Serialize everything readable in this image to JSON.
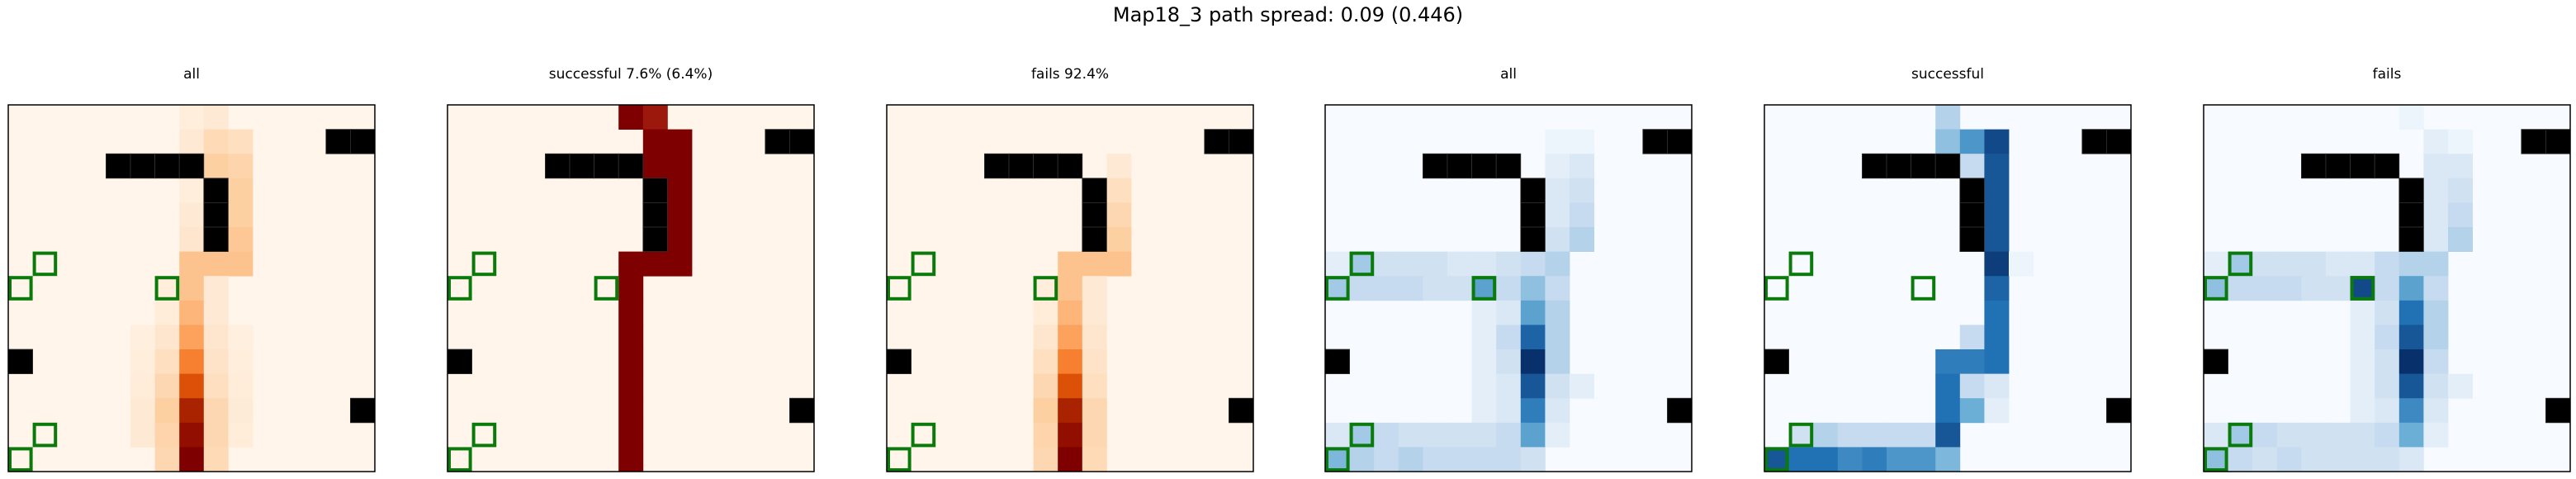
{
  "figure_title": "Map18_3 path spread: 0.09 (0.446)",
  "chart_data": {
    "type": "heatmap",
    "grid_size": 15,
    "obstacles": [
      [
        1,
        13
      ],
      [
        1,
        14
      ],
      [
        2,
        4
      ],
      [
        2,
        5
      ],
      [
        2,
        6
      ],
      [
        2,
        7
      ],
      [
        3,
        8
      ],
      [
        4,
        8
      ],
      [
        5,
        8
      ],
      [
        10,
        0
      ],
      [
        12,
        14
      ]
    ],
    "targets": [
      [
        6,
        1
      ],
      [
        7,
        0
      ],
      [
        7,
        6
      ],
      [
        13,
        1
      ],
      [
        14,
        0
      ]
    ],
    "panels": [
      {
        "title": "all",
        "colormap": "Oranges",
        "values": {
          "0": {
            "7": 0.05,
            "8": 0.08
          },
          "1": {
            "7": 0.08,
            "8": 0.18,
            "9": 0.15
          },
          "2": {
            "8": 0.25,
            "9": 0.22
          },
          "3": {
            "7": 0.05,
            "9": 0.25
          },
          "4": {
            "7": 0.08,
            "9": 0.25
          },
          "5": {
            "7": 0.1,
            "9": 0.28
          },
          "6": {
            "7": 0.3,
            "8": 0.3,
            "9": 0.3
          },
          "7": {
            "6": 0.05,
            "7": 0.3,
            "8": 0.08
          },
          "8": {
            "6": 0.06,
            "7": 0.35,
            "8": 0.08
          },
          "9": {
            "5": 0.04,
            "6": 0.1,
            "7": 0.42,
            "8": 0.1,
            "9": 0.04
          },
          "10": {
            "5": 0.05,
            "6": 0.15,
            "7": 0.55,
            "8": 0.12,
            "9": 0.05
          },
          "11": {
            "5": 0.06,
            "6": 0.2,
            "7": 0.72,
            "8": 0.15,
            "9": 0.06
          },
          "12": {
            "5": 0.08,
            "6": 0.25,
            "7": 0.88,
            "8": 0.2,
            "9": 0.07
          },
          "13": {
            "5": 0.08,
            "6": 0.22,
            "7": 0.95,
            "8": 0.2,
            "9": 0.06
          },
          "14": {
            "6": 0.2,
            "7": 1.0,
            "8": 0.18
          }
        }
      },
      {
        "title": "successful 7.6% (6.4%)",
        "colormap": "Reds_dark",
        "values": {
          "0": {
            "7": 1.0,
            "8": 0.8
          },
          "1": {
            "8": 1.0,
            "9": 1.0
          },
          "2": {
            "8": 1.0,
            "9": 1.0
          },
          "3": {
            "9": 1.0
          },
          "4": {
            "9": 1.0
          },
          "5": {
            "9": 1.0
          },
          "6": {
            "7": 1.0,
            "8": 1.0,
            "9": 1.0
          },
          "7": {
            "7": 1.0
          },
          "8": {
            "7": 1.0
          },
          "9": {
            "7": 1.0
          },
          "10": {
            "7": 1.0
          },
          "11": {
            "7": 1.0
          },
          "12": {
            "7": 1.0
          },
          "13": {
            "7": 1.0
          },
          "14": {
            "7": 1.0
          }
        }
      },
      {
        "title": "fails 92.4%",
        "colormap": "Oranges",
        "values": {
          "2": {
            "9": 0.08
          },
          "3": {
            "9": 0.15
          },
          "4": {
            "9": 0.2
          },
          "5": {
            "9": 0.25
          },
          "6": {
            "7": 0.3,
            "8": 0.3,
            "9": 0.3
          },
          "7": {
            "6": 0.05,
            "7": 0.3,
            "8": 0.08
          },
          "8": {
            "6": 0.06,
            "7": 0.35,
            "8": 0.08
          },
          "9": {
            "6": 0.1,
            "7": 0.42,
            "8": 0.1
          },
          "10": {
            "6": 0.15,
            "7": 0.55,
            "8": 0.12
          },
          "11": {
            "6": 0.2,
            "7": 0.72,
            "8": 0.15
          },
          "12": {
            "6": 0.25,
            "7": 0.88,
            "8": 0.2
          },
          "13": {
            "6": 0.22,
            "7": 0.95,
            "8": 0.2
          },
          "14": {
            "6": 0.2,
            "7": 1.0,
            "8": 0.18
          }
        }
      },
      {
        "title": "all",
        "colormap": "Blues",
        "values": {
          "1": {
            "9": 0.05,
            "10": 0.05
          },
          "2": {
            "9": 0.1,
            "10": 0.15
          },
          "3": {
            "9": 0.15,
            "10": 0.2
          },
          "4": {
            "9": 0.15,
            "10": 0.25
          },
          "5": {
            "9": 0.2,
            "10": 0.3
          },
          "6": {
            "0": 0.1,
            "1": 0.35,
            "2": 0.2,
            "3": 0.2,
            "4": 0.2,
            "5": 0.15,
            "6": 0.15,
            "7": 0.2,
            "8": 0.25,
            "9": 0.3
          },
          "7": {
            "0": 0.35,
            "1": 0.25,
            "2": 0.25,
            "3": 0.25,
            "4": 0.2,
            "5": 0.2,
            "6": 0.55,
            "7": 0.25,
            "8": 0.4,
            "9": 0.25
          },
          "8": {
            "6": 0.1,
            "7": 0.15,
            "8": 0.55,
            "9": 0.3
          },
          "9": {
            "6": 0.1,
            "7": 0.25,
            "8": 0.8,
            "9": 0.3
          },
          "10": {
            "6": 0.1,
            "7": 0.2,
            "8": 1.0,
            "9": 0.3
          },
          "11": {
            "6": 0.1,
            "7": 0.15,
            "8": 0.85,
            "9": 0.2,
            "10": 0.1
          },
          "12": {
            "6": 0.1,
            "7": 0.15,
            "8": 0.7,
            "9": 0.15
          },
          "13": {
            "0": 0.15,
            "1": 0.35,
            "2": 0.25,
            "3": 0.2,
            "4": 0.2,
            "5": 0.2,
            "6": 0.2,
            "7": 0.25,
            "8": 0.55,
            "9": 0.1
          },
          "14": {
            "0": 0.45,
            "1": 0.3,
            "2": 0.25,
            "3": 0.3,
            "4": 0.25,
            "5": 0.25,
            "6": 0.25,
            "7": 0.25,
            "8": 0.2
          }
        }
      },
      {
        "title": "successful",
        "colormap": "Blues",
        "values": {
          "0": {
            "7": 0.3
          },
          "1": {
            "7": 0.4,
            "8": 0.6,
            "9": 0.9
          },
          "2": {
            "8": 0.25,
            "9": 0.85
          },
          "3": {
            "9": 0.85
          },
          "4": {
            "9": 0.85
          },
          "5": {
            "9": 0.85
          },
          "6": {
            "9": 0.95,
            "10": 0.05
          },
          "7": {
            "9": 0.8
          },
          "8": {
            "9": 0.75
          },
          "9": {
            "8": 0.25,
            "9": 0.75
          },
          "10": {
            "7": 0.7,
            "8": 0.7,
            "9": 0.75
          },
          "11": {
            "7": 0.75,
            "8": 0.25,
            "9": 0.15
          },
          "12": {
            "7": 0.75,
            "8": 0.5,
            "9": 0.1
          },
          "13": {
            "1": 0.2,
            "2": 0.3,
            "3": 0.25,
            "4": 0.25,
            "5": 0.25,
            "6": 0.25,
            "7": 0.85
          },
          "14": {
            "0": 0.85,
            "1": 0.75,
            "2": 0.75,
            "3": 0.65,
            "4": 0.7,
            "5": 0.6,
            "6": 0.6,
            "7": 0.45
          }
        }
      },
      {
        "title": "fails",
        "colormap": "Blues",
        "values": {
          "0": {
            "8": 0.05
          },
          "1": {
            "9": 0.1,
            "10": 0.05
          },
          "2": {
            "9": 0.15,
            "10": 0.15
          },
          "3": {
            "9": 0.15,
            "10": 0.2
          },
          "4": {
            "9": 0.15,
            "10": 0.25
          },
          "5": {
            "9": 0.15,
            "10": 0.3
          },
          "6": {
            "0": 0.1,
            "1": 0.35,
            "2": 0.2,
            "3": 0.2,
            "4": 0.2,
            "5": 0.15,
            "6": 0.15,
            "7": 0.25,
            "8": 0.3,
            "9": 0.3
          },
          "7": {
            "0": 0.4,
            "1": 0.25,
            "2": 0.25,
            "3": 0.25,
            "4": 0.2,
            "5": 0.2,
            "6": 0.9,
            "7": 0.25,
            "8": 0.55,
            "9": 0.25
          },
          "8": {
            "6": 0.1,
            "7": 0.2,
            "8": 0.75,
            "9": 0.3
          },
          "9": {
            "6": 0.1,
            "7": 0.25,
            "8": 0.85,
            "9": 0.3
          },
          "10": {
            "6": 0.1,
            "7": 0.2,
            "8": 1.0,
            "9": 0.25
          },
          "11": {
            "6": 0.1,
            "7": 0.2,
            "8": 0.85,
            "9": 0.2,
            "10": 0.1
          },
          "12": {
            "6": 0.1,
            "7": 0.15,
            "8": 0.65,
            "9": 0.15
          },
          "13": {
            "0": 0.15,
            "1": 0.35,
            "2": 0.25,
            "3": 0.2,
            "4": 0.2,
            "5": 0.2,
            "6": 0.2,
            "7": 0.25,
            "8": 0.5,
            "9": 0.1
          },
          "14": {
            "0": 0.4,
            "1": 0.25,
            "2": 0.2,
            "3": 0.25,
            "4": 0.2,
            "5": 0.2,
            "6": 0.2,
            "7": 0.2,
            "8": 0.15
          }
        }
      }
    ]
  },
  "colors": {
    "obstacle": "#000000",
    "target": "#0a7a0a",
    "frame": "#000000"
  }
}
